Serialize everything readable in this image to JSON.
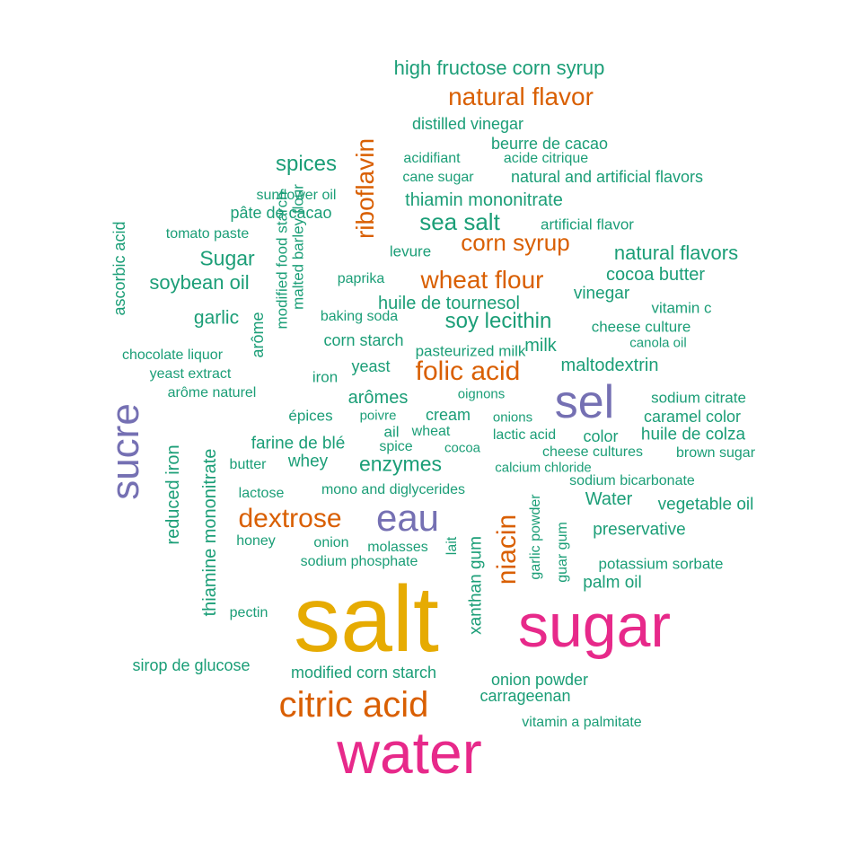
{
  "palette": {
    "green": "#1b9e77",
    "orange": "#d95f02",
    "purple": "#7570b3",
    "pink": "#e7298a",
    "gold": "#e6ab02"
  },
  "words": [
    {
      "text": "salt",
      "color": "gold"
    },
    {
      "text": "water",
      "color": "pink"
    },
    {
      "text": "sugar",
      "color": "pink"
    },
    {
      "text": "sucre",
      "color": "purple"
    },
    {
      "text": "sel",
      "color": "purple"
    },
    {
      "text": "eau",
      "color": "purple"
    },
    {
      "text": "citric acid",
      "color": "orange"
    },
    {
      "text": "natural flavor",
      "color": "orange"
    },
    {
      "text": "riboflavin",
      "color": "orange"
    },
    {
      "text": "corn syrup",
      "color": "orange"
    },
    {
      "text": "wheat flour",
      "color": "orange"
    },
    {
      "text": "folic acid",
      "color": "orange"
    },
    {
      "text": "dextrose",
      "color": "orange"
    },
    {
      "text": "niacin",
      "color": "orange"
    },
    {
      "text": "high fructose corn syrup",
      "color": "green"
    },
    {
      "text": "distilled vinegar",
      "color": "green"
    },
    {
      "text": "beurre de cacao",
      "color": "green"
    },
    {
      "text": "acidifiant",
      "color": "green"
    },
    {
      "text": "acide citrique",
      "color": "green"
    },
    {
      "text": "spices",
      "color": "green"
    },
    {
      "text": "cane sugar",
      "color": "green"
    },
    {
      "text": "natural and artificial flavors",
      "color": "green"
    },
    {
      "text": "sunflower oil",
      "color": "green"
    },
    {
      "text": "thiamin mononitrate",
      "color": "green"
    },
    {
      "text": "pâte de cacao",
      "color": "green"
    },
    {
      "text": "sea salt",
      "color": "green"
    },
    {
      "text": "artificial flavor",
      "color": "green"
    },
    {
      "text": "ascorbic acid",
      "color": "green"
    },
    {
      "text": "tomato paste",
      "color": "green"
    },
    {
      "text": "levure",
      "color": "green"
    },
    {
      "text": "natural flavors",
      "color": "green"
    },
    {
      "text": "Sugar",
      "color": "green"
    },
    {
      "text": "malted barley flour",
      "color": "green"
    },
    {
      "text": "modified food starch",
      "color": "green"
    },
    {
      "text": "cocoa butter",
      "color": "green"
    },
    {
      "text": "soybean oil",
      "color": "green"
    },
    {
      "text": "paprika",
      "color": "green"
    },
    {
      "text": "vinegar",
      "color": "green"
    },
    {
      "text": "huile de tournesol",
      "color": "green"
    },
    {
      "text": "vitamin c",
      "color": "green"
    },
    {
      "text": "garlic",
      "color": "green"
    },
    {
      "text": "baking soda",
      "color": "green"
    },
    {
      "text": "soy lecithin",
      "color": "green"
    },
    {
      "text": "cheese culture",
      "color": "green"
    },
    {
      "text": "arôme",
      "color": "green"
    },
    {
      "text": "corn starch",
      "color": "green"
    },
    {
      "text": "milk",
      "color": "green"
    },
    {
      "text": "pasteurized milk",
      "color": "green"
    },
    {
      "text": "canola oil",
      "color": "green"
    },
    {
      "text": "chocolate liquor",
      "color": "green"
    },
    {
      "text": "maltodextrin",
      "color": "green"
    },
    {
      "text": "yeast",
      "color": "green"
    },
    {
      "text": "yeast extract",
      "color": "green"
    },
    {
      "text": "iron",
      "color": "green"
    },
    {
      "text": "arôme naturel",
      "color": "green"
    },
    {
      "text": "arômes",
      "color": "green"
    },
    {
      "text": "oignons",
      "color": "green"
    },
    {
      "text": "sodium citrate",
      "color": "green"
    },
    {
      "text": "épices",
      "color": "green"
    },
    {
      "text": "poivre",
      "color": "green"
    },
    {
      "text": "cream",
      "color": "green"
    },
    {
      "text": "onions",
      "color": "green"
    },
    {
      "text": "caramel color",
      "color": "green"
    },
    {
      "text": "thiamine mononitrate",
      "color": "green"
    },
    {
      "text": "ail",
      "color": "green"
    },
    {
      "text": "wheat",
      "color": "green"
    },
    {
      "text": "lactic acid",
      "color": "green"
    },
    {
      "text": "color",
      "color": "green"
    },
    {
      "text": "huile de colza",
      "color": "green"
    },
    {
      "text": "reduced iron",
      "color": "green"
    },
    {
      "text": "farine de blé",
      "color": "green"
    },
    {
      "text": "spice",
      "color": "green"
    },
    {
      "text": "cocoa",
      "color": "green"
    },
    {
      "text": "cheese cultures",
      "color": "green"
    },
    {
      "text": "brown sugar",
      "color": "green"
    },
    {
      "text": "butter",
      "color": "green"
    },
    {
      "text": "whey",
      "color": "green"
    },
    {
      "text": "enzymes",
      "color": "green"
    },
    {
      "text": "calcium chloride",
      "color": "green"
    },
    {
      "text": "sodium bicarbonate",
      "color": "green"
    },
    {
      "text": "lactose",
      "color": "green"
    },
    {
      "text": "mono and diglycerides",
      "color": "green"
    },
    {
      "text": "garlic powder",
      "color": "green"
    },
    {
      "text": "Water",
      "color": "green"
    },
    {
      "text": "vegetable oil",
      "color": "green"
    },
    {
      "text": "xanthan gum",
      "color": "green"
    },
    {
      "text": "guar gum",
      "color": "green"
    },
    {
      "text": "preservative",
      "color": "green"
    },
    {
      "text": "honey",
      "color": "green"
    },
    {
      "text": "onion",
      "color": "green"
    },
    {
      "text": "molasses",
      "color": "green"
    },
    {
      "text": "lait",
      "color": "green"
    },
    {
      "text": "sodium phosphate",
      "color": "green"
    },
    {
      "text": "potassium sorbate",
      "color": "green"
    },
    {
      "text": "palm oil",
      "color": "green"
    },
    {
      "text": "pectin",
      "color": "green"
    },
    {
      "text": "sirop de glucose",
      "color": "green"
    },
    {
      "text": "modified corn starch",
      "color": "green"
    },
    {
      "text": "onion powder",
      "color": "green"
    },
    {
      "text": "carrageenan",
      "color": "green"
    },
    {
      "text": "vitamin a palmitate",
      "color": "green"
    }
  ]
}
